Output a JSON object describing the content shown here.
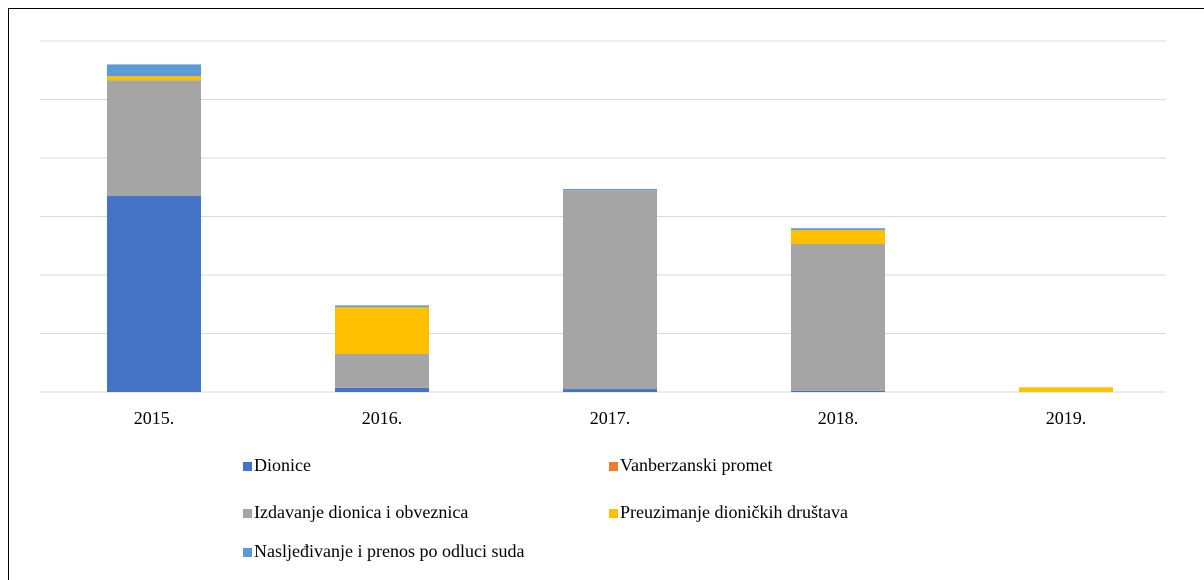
{
  "chart_data": {
    "type": "stacked_bar",
    "categories": [
      "2015.",
      "2016.",
      "2017.",
      "2018.",
      "2019."
    ],
    "series": [
      {
        "name": "Dionice",
        "color": "#4472c4",
        "values": [
          3.35,
          0.07,
          0.05,
          0.02,
          0
        ]
      },
      {
        "name": "Vanberzanski promet",
        "color": "#ed7d31",
        "values": [
          0,
          0,
          0,
          0,
          0
        ]
      },
      {
        "name": "Izdavanje dionica i obveznica",
        "color": "#a5a5a5",
        "values": [
          1.98,
          0.58,
          3.4,
          2.51,
          0
        ]
      },
      {
        "name": "Preuzimanje dioničkih društava",
        "color": "#ffc000",
        "values": [
          0.07,
          0.8,
          0,
          0.24,
          0.08
        ]
      },
      {
        "name": "Nasljeđivanje i prenos po odluci suda",
        "color": "#5b9bd5",
        "values": [
          0.2,
          0.03,
          0.02,
          0.03,
          0
        ]
      }
    ],
    "ylim": [
      0,
      6
    ],
    "yticks": [
      0,
      1,
      2,
      3,
      4,
      5,
      6
    ],
    "grid": true
  }
}
